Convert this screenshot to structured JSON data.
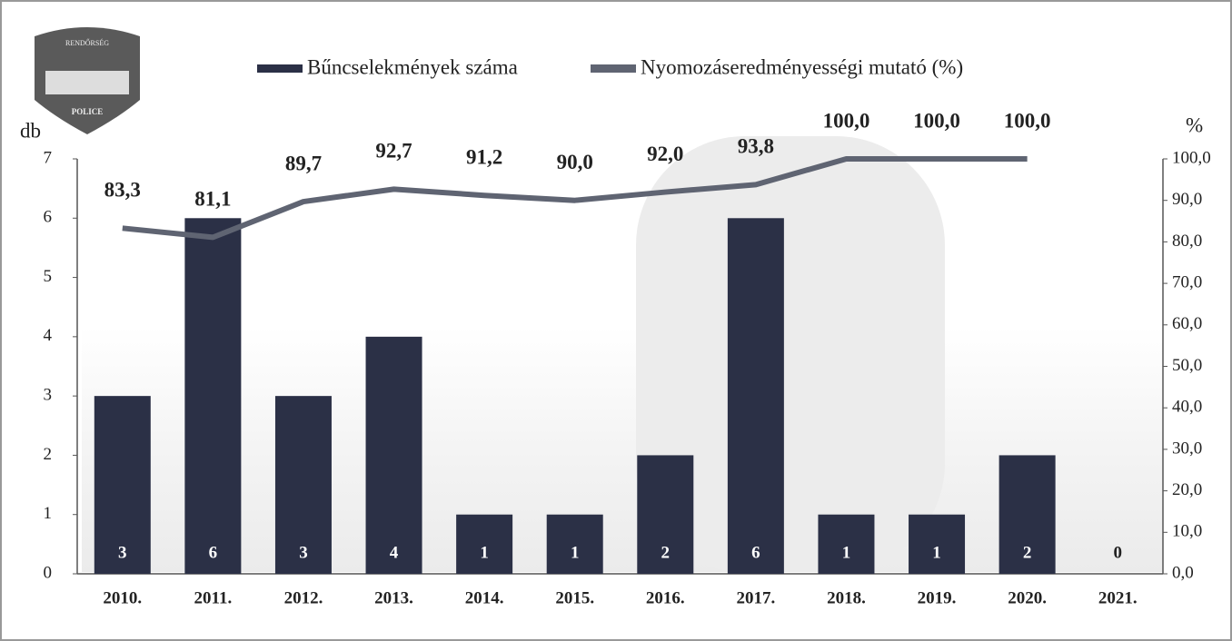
{
  "chart_data": {
    "type": "combo",
    "logo": {
      "top": "RENDŐRSÉG",
      "bottom": "POLICE"
    },
    "y_label": "db",
    "y2_label": "%",
    "categories": [
      "2010.",
      "2011.",
      "2012.",
      "2013.",
      "2014.",
      "2015.",
      "2016.",
      "2017.",
      "2018.",
      "2019.",
      "2020.",
      "2021."
    ],
    "series": [
      {
        "name": "Bűncselekmények száma",
        "type": "bar",
        "color": "#2b3046",
        "values": [
          3,
          6,
          3,
          4,
          1,
          1,
          2,
          6,
          1,
          1,
          2,
          0
        ]
      },
      {
        "name": "Nyomozáseredményességi mutató (%)",
        "type": "line",
        "axis": "y2",
        "color": "#5f6472",
        "values": [
          83.3,
          81.1,
          89.7,
          92.7,
          91.2,
          90.0,
          92.0,
          93.8,
          100.0,
          100.0,
          100.0,
          null
        ],
        "value_labels": [
          "83,3",
          "81,1",
          "89,7",
          "92,7",
          "91,2",
          "90,0",
          "92,0",
          "93,8",
          "100,0",
          "100,0",
          "100,0",
          null
        ]
      }
    ],
    "ylim": [
      0,
      7
    ],
    "yticks": [
      0,
      1,
      2,
      3,
      4,
      5,
      6,
      7
    ],
    "y2lim": [
      0,
      100
    ],
    "y2ticks": [
      {
        "value": 0,
        "label": "0,0"
      },
      {
        "value": 10,
        "label": "10,0"
      },
      {
        "value": 20,
        "label": "20,0"
      },
      {
        "value": 30,
        "label": "30,0"
      },
      {
        "value": 40,
        "label": "40,0"
      },
      {
        "value": 50,
        "label": "50,0"
      },
      {
        "value": 60,
        "label": "60,0"
      },
      {
        "value": 70,
        "label": "70,0"
      },
      {
        "value": 80,
        "label": "80,0"
      },
      {
        "value": 90,
        "label": "90,0"
      },
      {
        "value": 100,
        "label": "100,0"
      }
    ]
  }
}
